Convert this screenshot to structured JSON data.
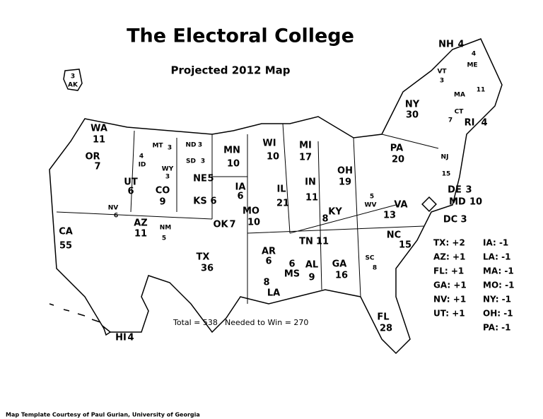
{
  "title": "The Electoral College",
  "subtitle": "Projected 2012 Map",
  "states": [
    {
      "abbr": "AK",
      "votes": 3
    },
    {
      "abbr": "WA",
      "votes": 11
    },
    {
      "abbr": "OR",
      "votes": 7
    },
    {
      "abbr": "ID",
      "votes": 4
    },
    {
      "abbr": "MT",
      "votes": 3
    },
    {
      "abbr": "WY",
      "votes": 3
    },
    {
      "abbr": "ND",
      "votes": 3
    },
    {
      "abbr": "SD",
      "votes": 3
    },
    {
      "abbr": "NE",
      "votes": 5
    },
    {
      "abbr": "UT",
      "votes": 6
    },
    {
      "abbr": "CO",
      "votes": 9
    },
    {
      "abbr": "NV",
      "votes": 6
    },
    {
      "abbr": "AZ",
      "votes": 11
    },
    {
      "abbr": "NM",
      "votes": 5
    },
    {
      "abbr": "CA",
      "votes": 55
    },
    {
      "abbr": "KS",
      "votes": 6
    },
    {
      "abbr": "OK",
      "votes": 7
    },
    {
      "abbr": "TX",
      "votes": 36
    },
    {
      "abbr": "MN",
      "votes": 10
    },
    {
      "abbr": "IA",
      "votes": 6
    },
    {
      "abbr": "MO",
      "votes": 10
    },
    {
      "abbr": "AR",
      "votes": 6
    },
    {
      "abbr": "LA",
      "votes": 8
    },
    {
      "abbr": "WI",
      "votes": 10
    },
    {
      "abbr": "MI",
      "votes": 17
    },
    {
      "abbr": "IL",
      "votes": 21
    },
    {
      "abbr": "IN",
      "votes": 11
    },
    {
      "abbr": "OH",
      "votes": 19
    },
    {
      "abbr": "KY",
      "votes": 8
    },
    {
      "abbr": "TN",
      "votes": 11
    },
    {
      "abbr": "MS",
      "votes": 6
    },
    {
      "abbr": "AL",
      "votes": 9
    },
    {
      "abbr": "GA",
      "votes": 16
    },
    {
      "abbr": "FL",
      "votes": 28
    },
    {
      "abbr": "SC",
      "votes": 8
    },
    {
      "abbr": "NC",
      "votes": 15
    },
    {
      "abbr": "VA",
      "votes": 13
    },
    {
      "abbr": "WV",
      "votes": 5
    },
    {
      "abbr": "PA",
      "votes": 20
    },
    {
      "abbr": "NY",
      "votes": 30
    },
    {
      "abbr": "NJ",
      "votes": 15
    },
    {
      "abbr": "DE",
      "votes": 3
    },
    {
      "abbr": "MD",
      "votes": 10
    },
    {
      "abbr": "DC",
      "votes": 3
    },
    {
      "abbr": "CT",
      "votes": 7
    },
    {
      "abbr": "RI",
      "votes": 4
    },
    {
      "abbr": "MA",
      "votes": 11
    },
    {
      "abbr": "VT",
      "votes": 3
    },
    {
      "abbr": "NH",
      "votes": 4
    },
    {
      "abbr": "ME",
      "votes": 4
    },
    {
      "abbr": "HI",
      "votes": 4
    }
  ],
  "gains": [
    "TX: +2",
    "AZ: +1",
    "FL: +1",
    "GA: +1",
    "NV: +1",
    "UT: +1"
  ],
  "losses": [
    "IA: -1",
    "LA: -1",
    "MA: -1",
    "MO: -1",
    "NY: -1",
    "OH: -1",
    "PA: -1"
  ],
  "total": "Total = 538",
  "needed": "Needed to Win = 270",
  "credit": "Map Template Courtesy of Paul Gurian, University of Georgia"
}
